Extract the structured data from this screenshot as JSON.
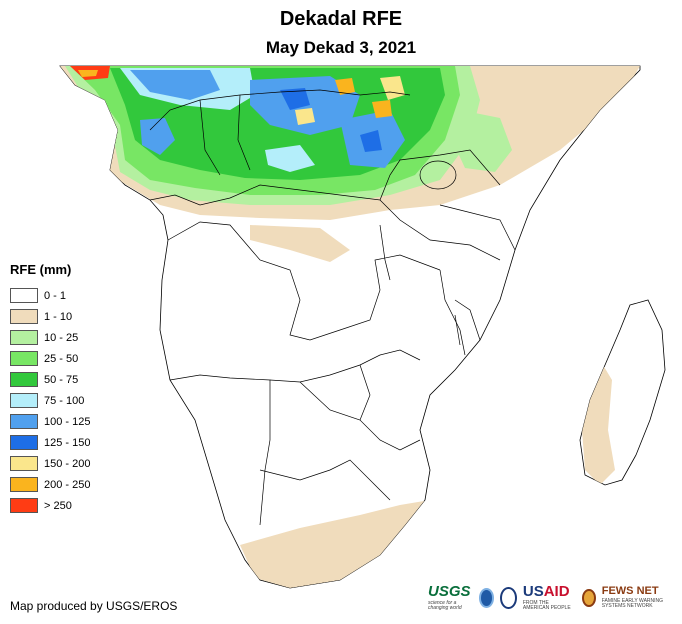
{
  "title": "Dekadal RFE",
  "subtitle": "May Dekad 3, 2021",
  "legend": {
    "title": "RFE (mm)",
    "items": [
      {
        "label": "0 - 1",
        "color": "#ffffff"
      },
      {
        "label": "1 - 10",
        "color": "#f0dcbc"
      },
      {
        "label": "10 - 25",
        "color": "#b4f0a0"
      },
      {
        "label": "25 - 50",
        "color": "#78e664"
      },
      {
        "label": "50 - 75",
        "color": "#32c83c"
      },
      {
        "label": "75 - 100",
        "color": "#b4eefa"
      },
      {
        "label": "100 - 125",
        "color": "#50a0ee"
      },
      {
        "label": "125 - 150",
        "color": "#1e6ee6"
      },
      {
        "label": "150 - 200",
        "color": "#fae68c"
      },
      {
        "label": "200 - 250",
        "color": "#fab41e"
      },
      {
        "label": "> 250",
        "color": "#ff3c14"
      }
    ]
  },
  "credit": "Map produced by USGS/EROS",
  "logos": {
    "usgs": "USGS",
    "usgs_tagline": "science for a changing world",
    "usaid_a": "US",
    "usaid_b": "AID",
    "usaid_tagline": "FROM THE AMERICAN PEOPLE",
    "fews": "FEWS NET",
    "fews_tagline": "FAMINE EARLY WARNING SYSTEMS NETWORK"
  }
}
